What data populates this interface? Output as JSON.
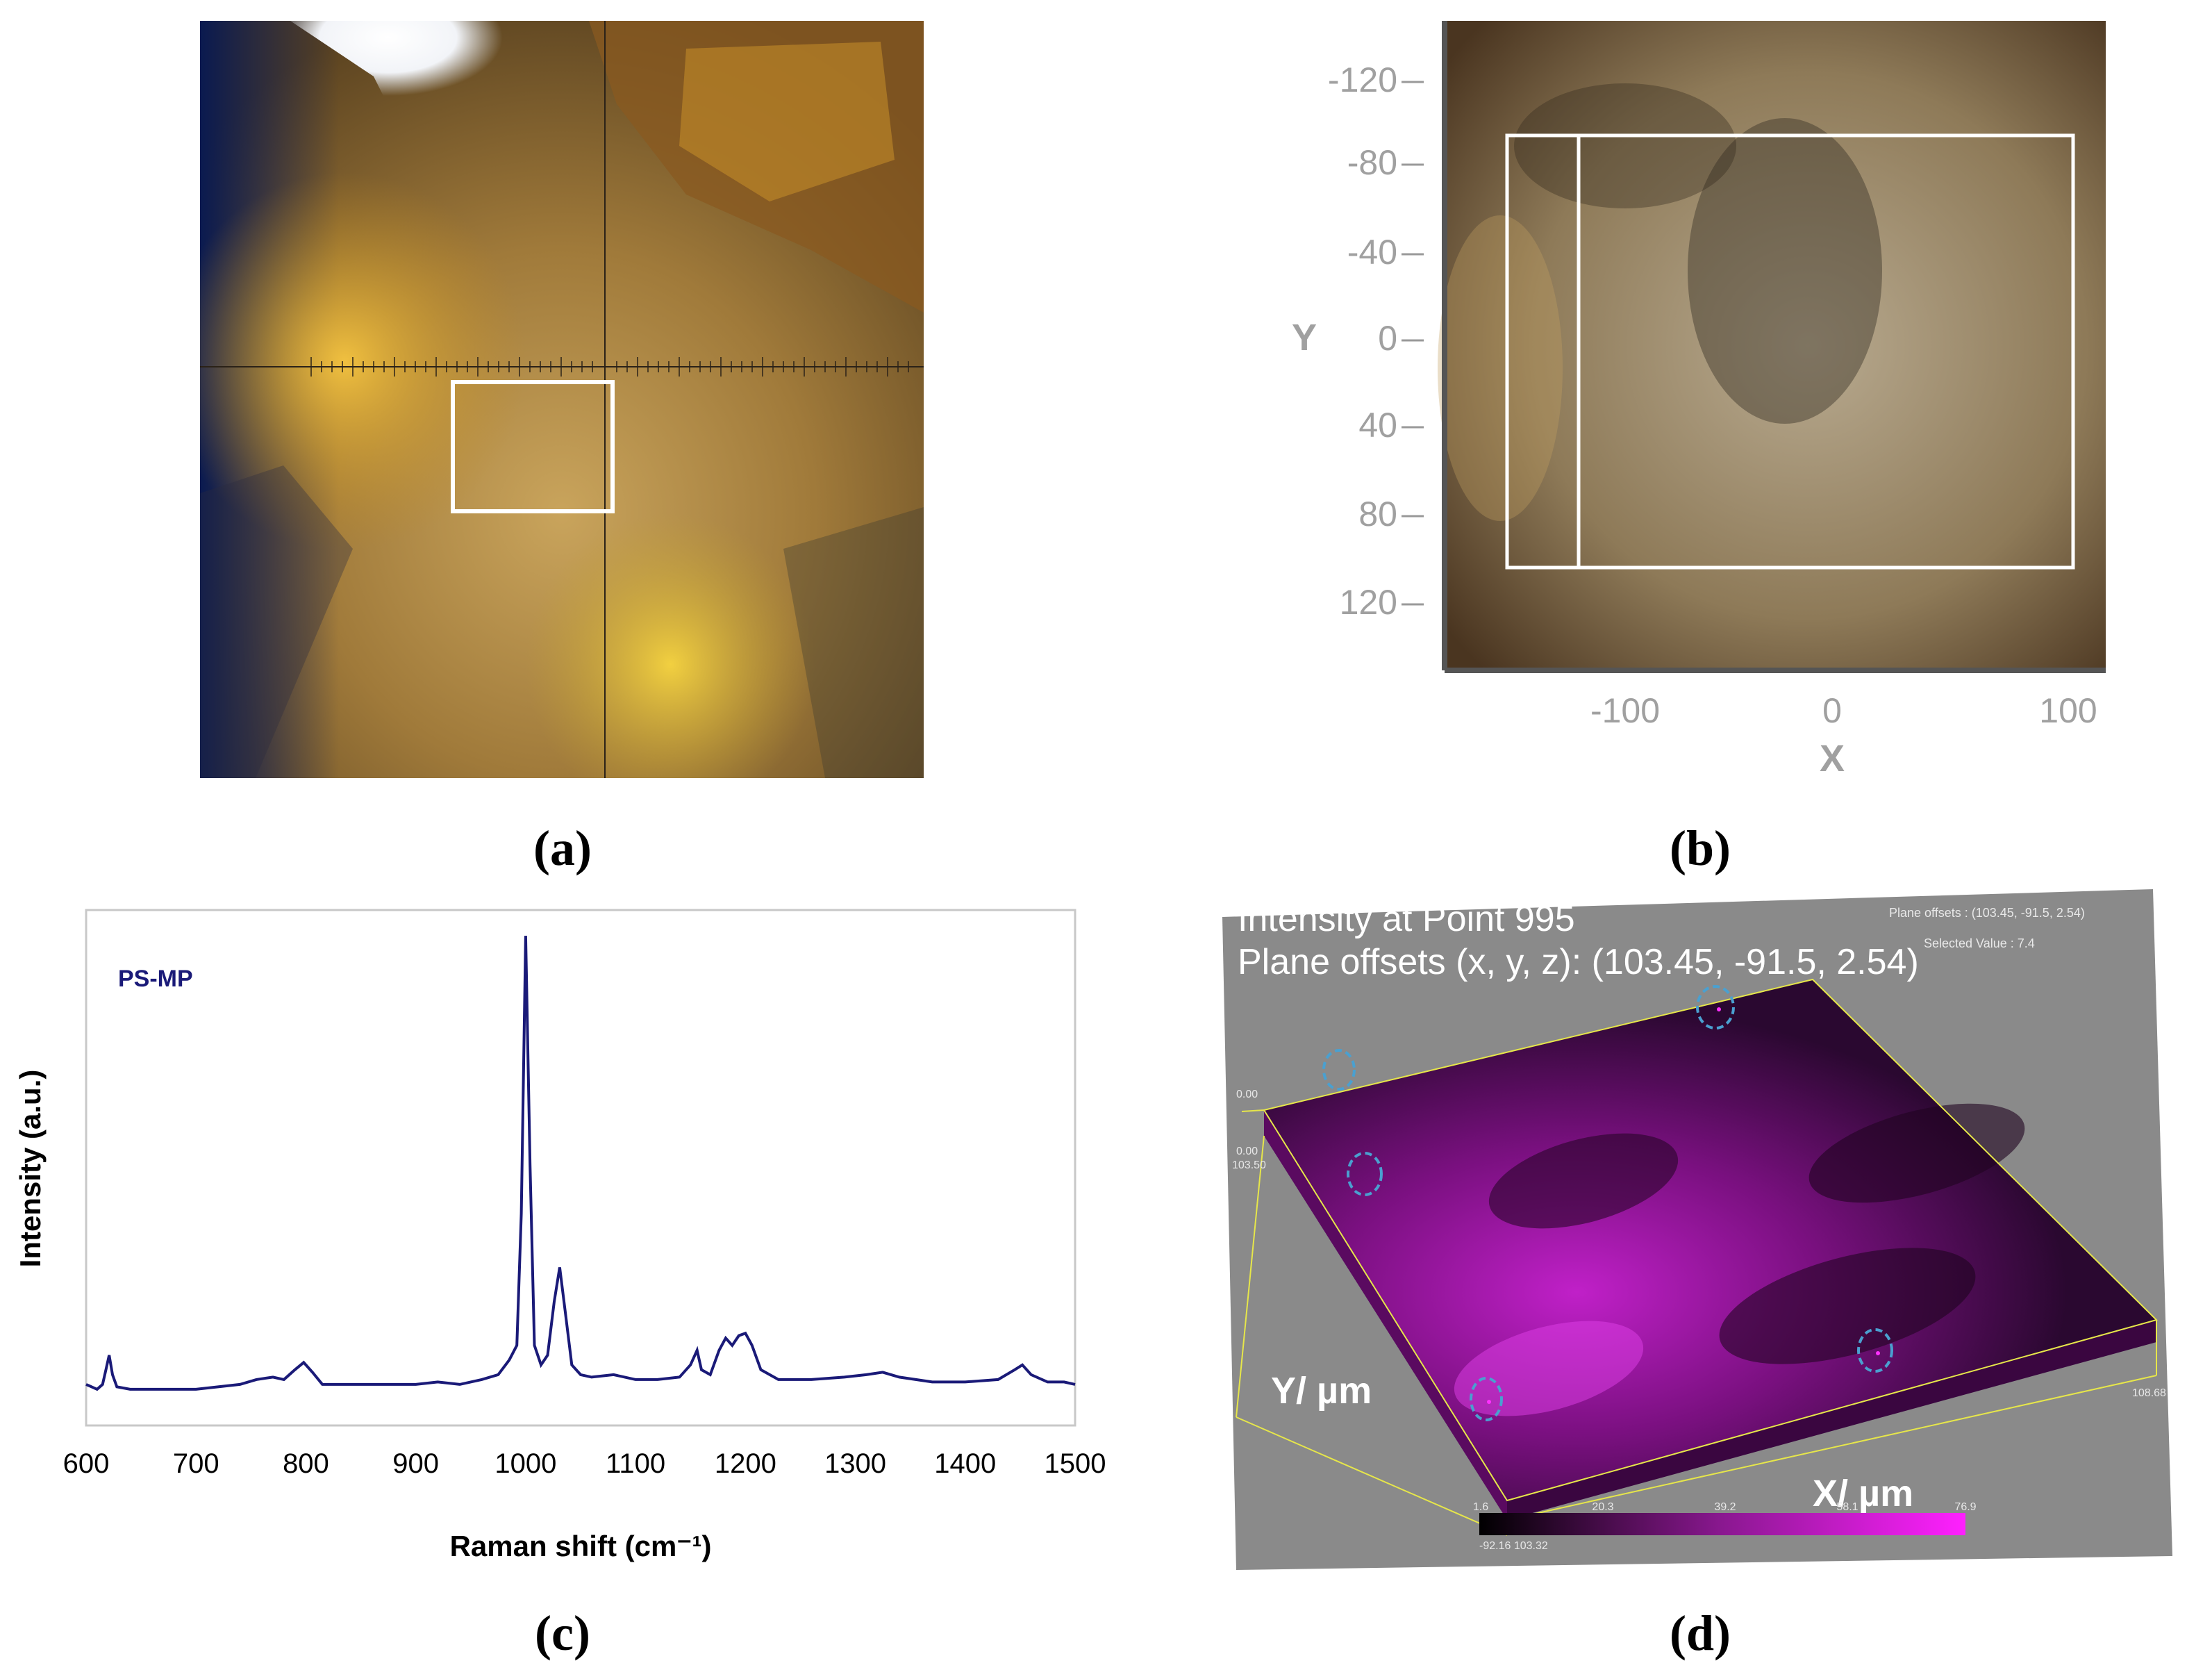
{
  "captions": {
    "a": "(a)",
    "b": "(b)",
    "c": "(c)",
    "d": "(d)"
  },
  "panel_b": {
    "y_axis_label": "Y",
    "x_axis_label": "X",
    "y_ticks": [
      "-120",
      "-80",
      "-40",
      "0",
      "40",
      "80",
      "120"
    ],
    "x_ticks": [
      "-100",
      "0",
      "100"
    ]
  },
  "chart_data": {
    "type": "line",
    "title": "",
    "series": [
      {
        "name": "PS-MP",
        "color": "#1a1a78"
      }
    ],
    "xlabel": "Raman shift (cm⁻¹)",
    "ylabel": "Intensity (a.u.)",
    "xlim": [
      600,
      1500
    ],
    "ylim": [
      0,
      1
    ],
    "x_ticks": [
      "600",
      "700",
      "800",
      "900",
      "1000",
      "1100",
      "1200",
      "1300",
      "1400",
      "1500"
    ],
    "legend_text": "PS-MP",
    "grid": false,
    "points": [
      [
        600,
        0.05
      ],
      [
        610,
        0.04
      ],
      [
        615,
        0.05
      ],
      [
        618,
        0.08
      ],
      [
        621,
        0.11
      ],
      [
        624,
        0.07
      ],
      [
        628,
        0.045
      ],
      [
        640,
        0.04
      ],
      [
        660,
        0.04
      ],
      [
        680,
        0.04
      ],
      [
        700,
        0.04
      ],
      [
        720,
        0.045
      ],
      [
        740,
        0.05
      ],
      [
        755,
        0.06
      ],
      [
        770,
        0.065
      ],
      [
        780,
        0.06
      ],
      [
        790,
        0.08
      ],
      [
        798,
        0.095
      ],
      [
        806,
        0.075
      ],
      [
        815,
        0.05
      ],
      [
        830,
        0.05
      ],
      [
        845,
        0.05
      ],
      [
        860,
        0.05
      ],
      [
        880,
        0.05
      ],
      [
        900,
        0.05
      ],
      [
        920,
        0.055
      ],
      [
        940,
        0.05
      ],
      [
        960,
        0.06
      ],
      [
        975,
        0.07
      ],
      [
        985,
        0.1
      ],
      [
        992,
        0.13
      ],
      [
        996,
        0.4
      ],
      [
        1000,
        0.97
      ],
      [
        1004,
        0.5
      ],
      [
        1008,
        0.13
      ],
      [
        1014,
        0.09
      ],
      [
        1020,
        0.11
      ],
      [
        1026,
        0.22
      ],
      [
        1031,
        0.29
      ],
      [
        1036,
        0.2
      ],
      [
        1042,
        0.09
      ],
      [
        1050,
        0.07
      ],
      [
        1060,
        0.065
      ],
      [
        1080,
        0.07
      ],
      [
        1100,
        0.06
      ],
      [
        1120,
        0.06
      ],
      [
        1140,
        0.065
      ],
      [
        1150,
        0.09
      ],
      [
        1156,
        0.12
      ],
      [
        1160,
        0.08
      ],
      [
        1168,
        0.07
      ],
      [
        1176,
        0.12
      ],
      [
        1182,
        0.145
      ],
      [
        1188,
        0.13
      ],
      [
        1194,
        0.15
      ],
      [
        1200,
        0.155
      ],
      [
        1206,
        0.13
      ],
      [
        1214,
        0.08
      ],
      [
        1230,
        0.06
      ],
      [
        1260,
        0.06
      ],
      [
        1290,
        0.065
      ],
      [
        1310,
        0.07
      ],
      [
        1325,
        0.075
      ],
      [
        1340,
        0.065
      ],
      [
        1370,
        0.055
      ],
      [
        1400,
        0.055
      ],
      [
        1430,
        0.06
      ],
      [
        1445,
        0.08
      ],
      [
        1452,
        0.09
      ],
      [
        1460,
        0.07
      ],
      [
        1475,
        0.055
      ],
      [
        1490,
        0.055
      ],
      [
        1500,
        0.05
      ]
    ]
  },
  "panel_d": {
    "line1": "Intensity at Point 995",
    "line2": "Plane offsets (x, y, z): (103.45, -91.5, 2.54)",
    "small_top_right_1": "Plane offsets : (103.45, -91.5, 2.54)",
    "small_top_right_2": "Selected Value : 7.4",
    "y_axis_label": "Y/ µm",
    "x_axis_label": "X/ µm",
    "corner_label_1": "0.00",
    "corner_label_2": "0.00",
    "corner_label_3": "103.50",
    "corner_label_4": "108.68",
    "colorbar_ticks": [
      "1.6",
      "20.3",
      "39.2",
      "58.1",
      "76.9"
    ],
    "colorbar_bottom": "-92.16  103.32"
  }
}
